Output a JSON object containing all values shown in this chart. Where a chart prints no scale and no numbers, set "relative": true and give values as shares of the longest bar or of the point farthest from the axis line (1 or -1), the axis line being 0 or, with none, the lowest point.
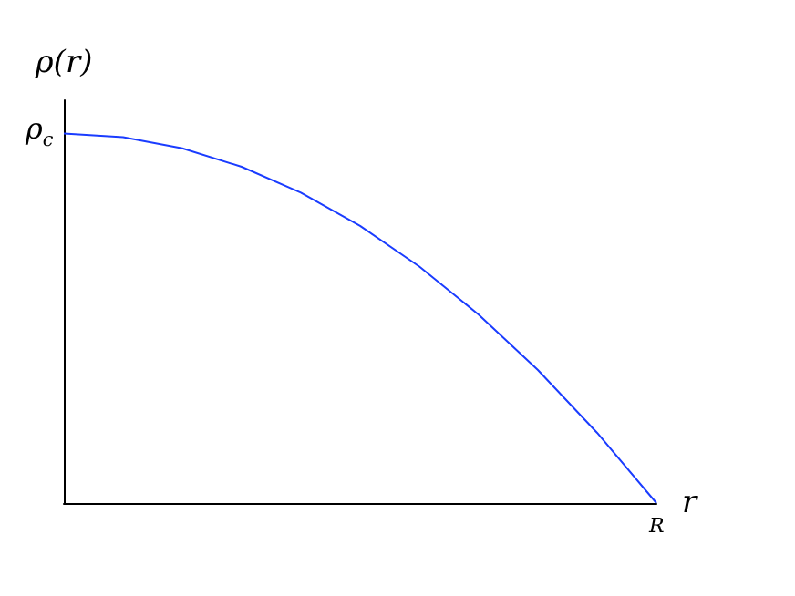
{
  "chart_data": {
    "type": "line",
    "xlabel": "r",
    "ylabel": "ρ(r)",
    "relative": true,
    "categories": [
      null,
      null,
      null,
      null,
      null,
      null,
      null,
      null,
      null,
      null,
      null
    ],
    "series": [
      {
        "color": "#1a3cff",
        "values": [
          1,
          0.99,
          0.96,
          0.91,
          0.84,
          0.75,
          0.64,
          0.51,
          0.36,
          0.19,
          0
        ]
      }
    ],
    "annotations": [
      "ρ$_{c}$",
      "R"
    ],
    "grid": false,
    "marker": "none",
    "line_style": "solid"
  }
}
